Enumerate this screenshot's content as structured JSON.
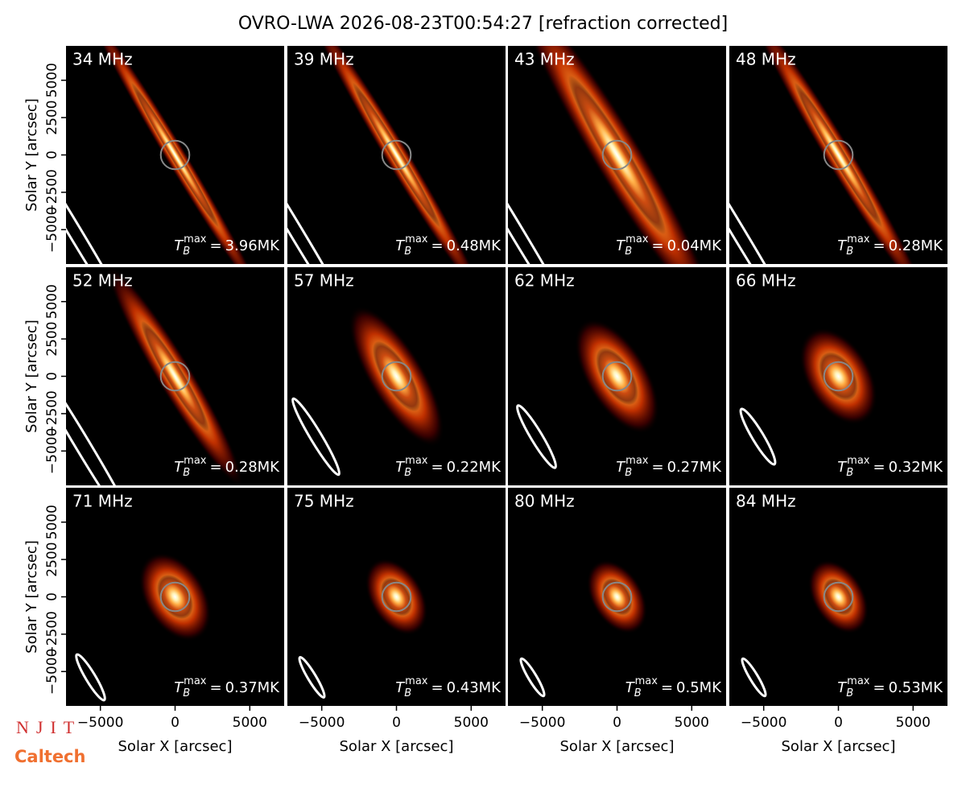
{
  "chart_data": {
    "type": "image-grid",
    "title": "OVRO-LWA 2026-08-23T00:54:27 [refraction corrected]",
    "xlabel": "Solar X [arcsec]",
    "ylabel": "Solar Y [arcsec]",
    "xlim": [
      -7300,
      7300
    ],
    "ylim": [
      -7300,
      7300
    ],
    "xticks": [
      {
        "value": -5000,
        "label": "−5000"
      },
      0,
      5000
    ],
    "yticks": [
      {
        "value": -5000,
        "label": "−5000"
      },
      {
        "value": -2500,
        "label": "−2500"
      },
      0,
      2500,
      5000
    ],
    "tb_symbol": "T",
    "tb_sub": "B",
    "tb_sup": "max",
    "tb_eq": "=",
    "panels": [
      {
        "label": "34 MHz",
        "tb_max": 3.96,
        "tb_max_label": "3.96MK"
      },
      {
        "label": "39 MHz",
        "tb_max": 0.48,
        "tb_max_label": "0.48MK"
      },
      {
        "label": "43 MHz",
        "tb_max": 0.04,
        "tb_max_label": "0.04MK"
      },
      {
        "label": "48 MHz",
        "tb_max": 0.28,
        "tb_max_label": "0.28MK"
      },
      {
        "label": "52 MHz",
        "tb_max": 0.28,
        "tb_max_label": "0.28MK"
      },
      {
        "label": "57 MHz",
        "tb_max": 0.22,
        "tb_max_label": "0.22MK"
      },
      {
        "label": "62 MHz",
        "tb_max": 0.27,
        "tb_max_label": "0.27MK"
      },
      {
        "label": "66 MHz",
        "tb_max": 0.32,
        "tb_max_label": "0.32MK"
      },
      {
        "label": "71 MHz",
        "tb_max": 0.37,
        "tb_max_label": "0.37MK"
      },
      {
        "label": "75 MHz",
        "tb_max": 0.43,
        "tb_max_label": "0.43MK"
      },
      {
        "label": "80 MHz",
        "tb_max": 0.5,
        "tb_max_label": "0.5MK"
      },
      {
        "label": "84 MHz",
        "tb_max": 0.53,
        "tb_max_label": "0.53MK"
      }
    ]
  },
  "logos": {
    "njit": "NJIT",
    "caltech": "Caltech"
  }
}
